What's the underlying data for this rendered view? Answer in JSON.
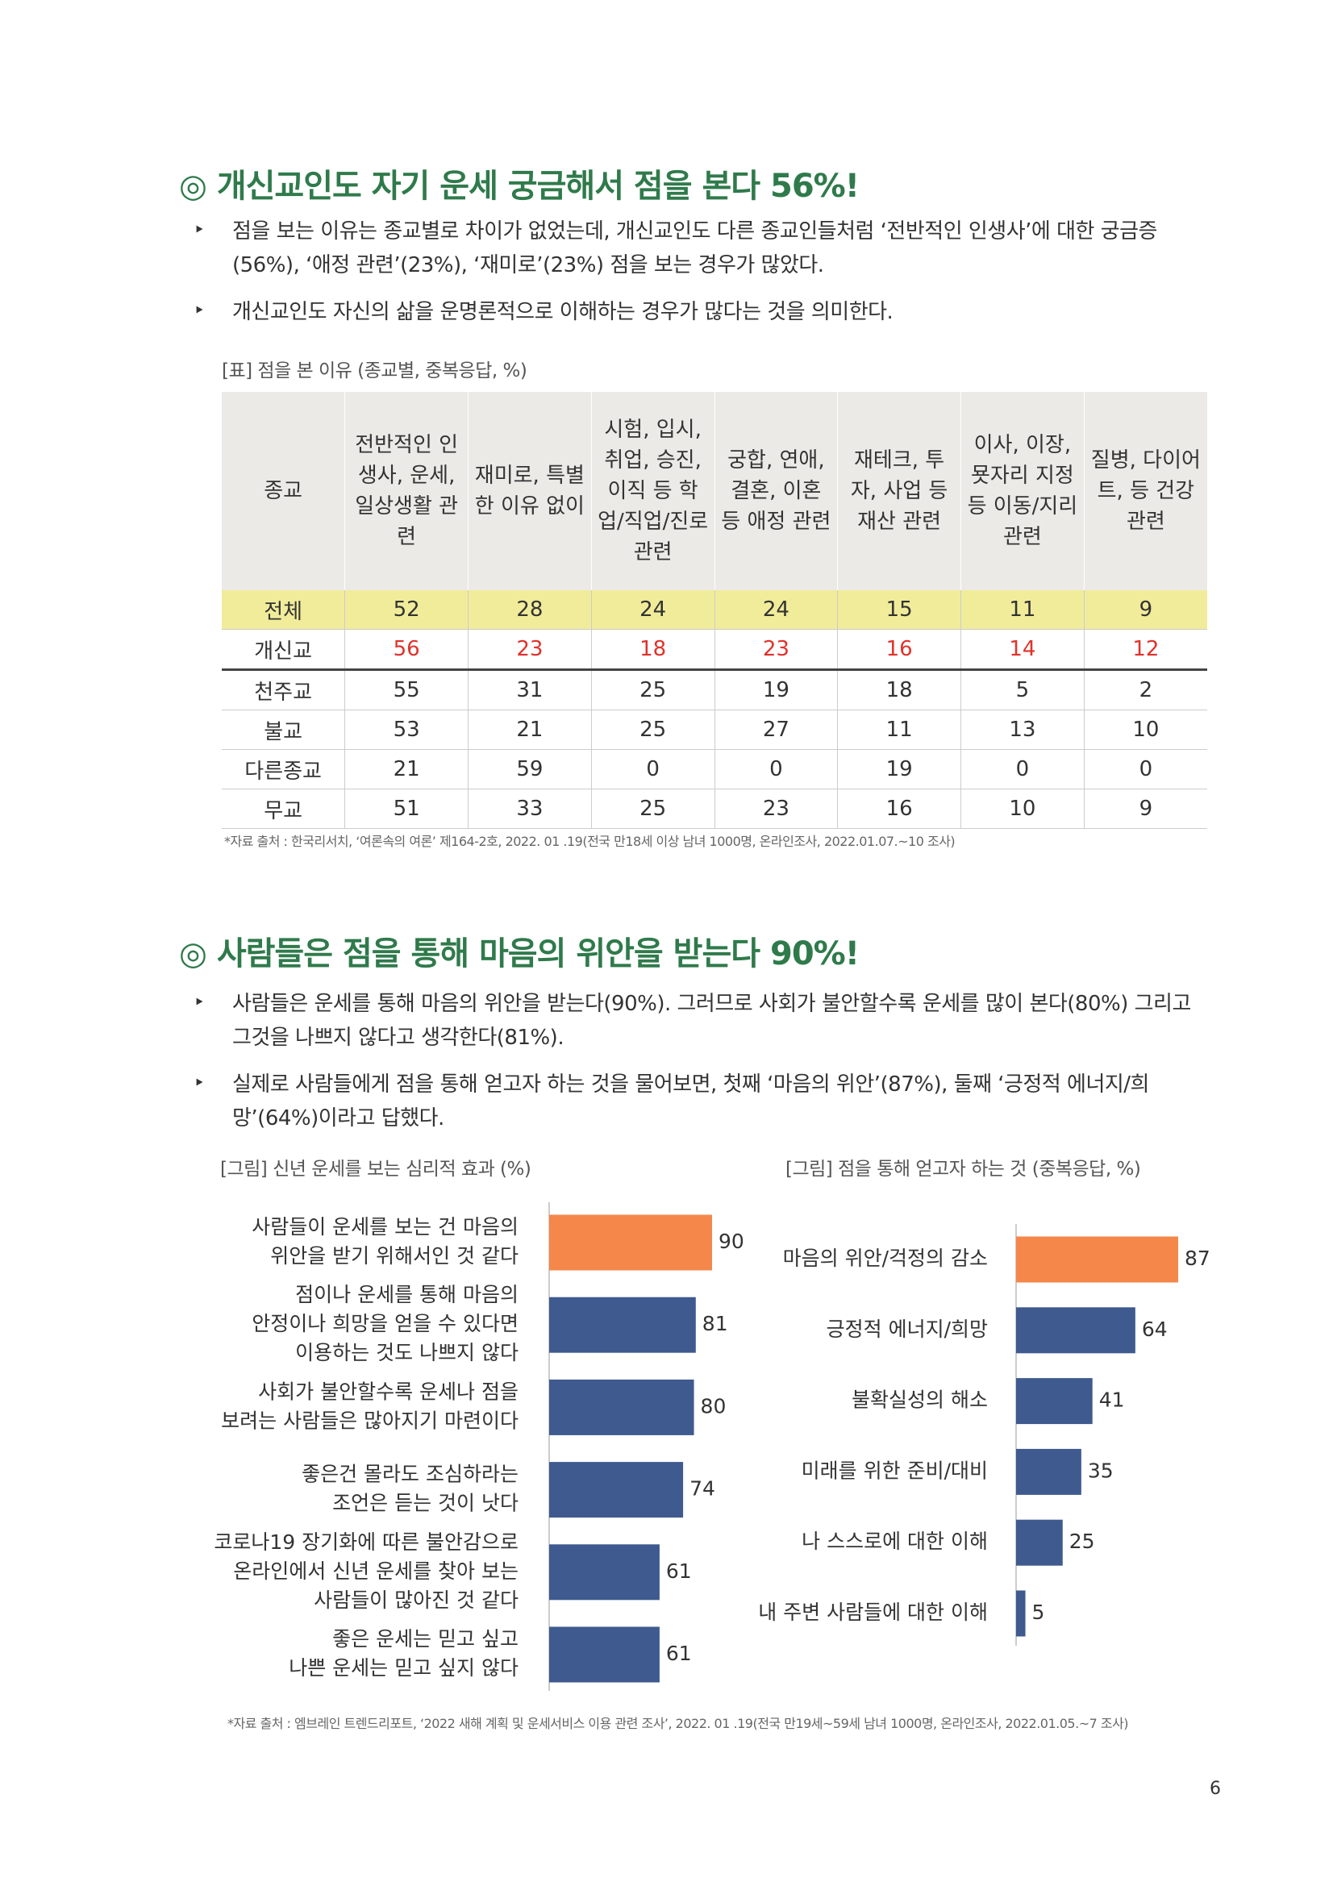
{
  "section1": {
    "title": "◎ 개신교인도 자기 운세 궁금해서 점을 본다 56%!",
    "bullets": [
      "점을 보는 이유는 종교별로 차이가 없었는데, 개신교인도 다른 종교인들처럼 ‘전반적인 인생사’에 대한 궁금증(56%), ‘애정 관련’(23%), ‘재미로’(23%) 점을 보는 경우가 많았다.",
      "개신교인도 자신의 삶을 운명론적으로 이해하는 경우가 많다는 것을 의미한다."
    ],
    "table": {
      "caption": "[표] 점을 본 이유 (종교별, 중복응답, %)",
      "header": [
        "종교",
        "전반적인 인생사, 운세, 일상생활 관련",
        "재미로, 특별한 이유 없이",
        "시험, 입시, 취업, 승진, 이직 등 학업/직업/진로 관련",
        "궁합, 연애, 결혼, 이혼 등 애정 관련",
        "재테크, 투자, 사업 등 재산 관련",
        "이사, 이장, 묫자리 지정 등 이동/지리 관련",
        "질병, 다이어트, 등 건강 관련"
      ],
      "rows": [
        [
          "전체",
          52,
          28,
          24,
          24,
          15,
          11,
          9
        ],
        [
          "개신교",
          56,
          23,
          18,
          23,
          16,
          14,
          12
        ],
        [
          "천주교",
          55,
          31,
          25,
          19,
          18,
          5,
          2
        ],
        [
          "불교",
          53,
          21,
          25,
          27,
          11,
          13,
          10
        ],
        [
          "다른종교",
          21,
          59,
          0,
          0,
          19,
          0,
          0
        ],
        [
          "무교",
          51,
          33,
          25,
          23,
          16,
          10,
          9
        ]
      ]
    },
    "source": "*자료 출처 : 한국리서치, ‘여론속의 여론’ 제164-2호, 2022. 01 .19(전국 만18세 이상 남녀 1000명, 온라인조사, 2022.01.07.~10 조사)"
  },
  "section2": {
    "title": "◎ 사람들은 점을 통해 마음의 위안을 받는다 90%!",
    "bullets": [
      "사람들은 운세를 통해 마음의 위안을 받는다(90%). 그러므로 사회가 불안할수록 운세를 많이 본다(80%) 그리고 그것을 나쁘지 않다고 생각한다(81%).",
      "실제로 사람들에게 점을 통해 얻고자 하는 것을 물어보면, 첫째 ‘마음의 위안’(87%), 둘째 ‘긍정적 에너지/희망’(64%)이라고 답했다."
    ],
    "source": "*자료 출처 : 엠브레인 트렌드리포트, ‘2022 새해 계획 및 운세서비스 이용 관련 조사’, 2022. 01 .19(전국 만19세~59세 남녀 1000명, 온라인조사, 2022.01.05.~7 조사)"
  },
  "chart_data": [
    {
      "type": "bar",
      "title": "[그림] 신년 운세를 보는 심리적 효과 (%)",
      "categories": [
        [
          "사람들이 운세를 보는 건 마음의",
          "위안을 받기 위해서인 것 같다"
        ],
        [
          "점이나 운세를 통해 마음의",
          "안정이나 희망을 얻을 수 있다면",
          "이용하는 것도 나쁘지 않다"
        ],
        [
          "사회가 불안할수록 운세나 점을",
          "보려는 사람들은 많아지기 마련이다"
        ],
        [
          "좋은건 몰라도 조심하라는",
          "조언은 듣는 것이 낫다"
        ],
        [
          "코로나19 장기화에 따른 불안감으로",
          "온라인에서 신년 운세를 찾아 보는",
          "사람들이 많아진 것 같다"
        ],
        [
          "좋은 운세는 믿고 싶고",
          "나쁜 운세는 믿고 싶지 않다"
        ]
      ],
      "values": [
        90,
        81,
        80,
        74,
        61,
        61
      ],
      "colors": [
        "#f5874a",
        "#3e5a8e",
        "#3e5a8e",
        "#3e5a8e",
        "#3e5a8e",
        "#3e5a8e"
      ]
    },
    {
      "type": "bar",
      "title": "[그림] 점을 통해 얻고자 하는 것 (중복응답, %)",
      "categories": [
        [
          "마음의 위안/걱정의 감소"
        ],
        [
          "긍정적 에너지/희망"
        ],
        [
          "불확실성의 해소"
        ],
        [
          "미래를 위한 준비/대비"
        ],
        [
          "나 스스로에 대한 이해"
        ],
        [
          "내 주변 사람들에 대한 이해"
        ]
      ],
      "values": [
        87,
        64,
        41,
        35,
        25,
        5
      ],
      "colors": [
        "#f5874a",
        "#3e5a8e",
        "#3e5a8e",
        "#3e5a8e",
        "#3e5a8e",
        "#3e5a8e"
      ]
    }
  ],
  "page_number": "6"
}
